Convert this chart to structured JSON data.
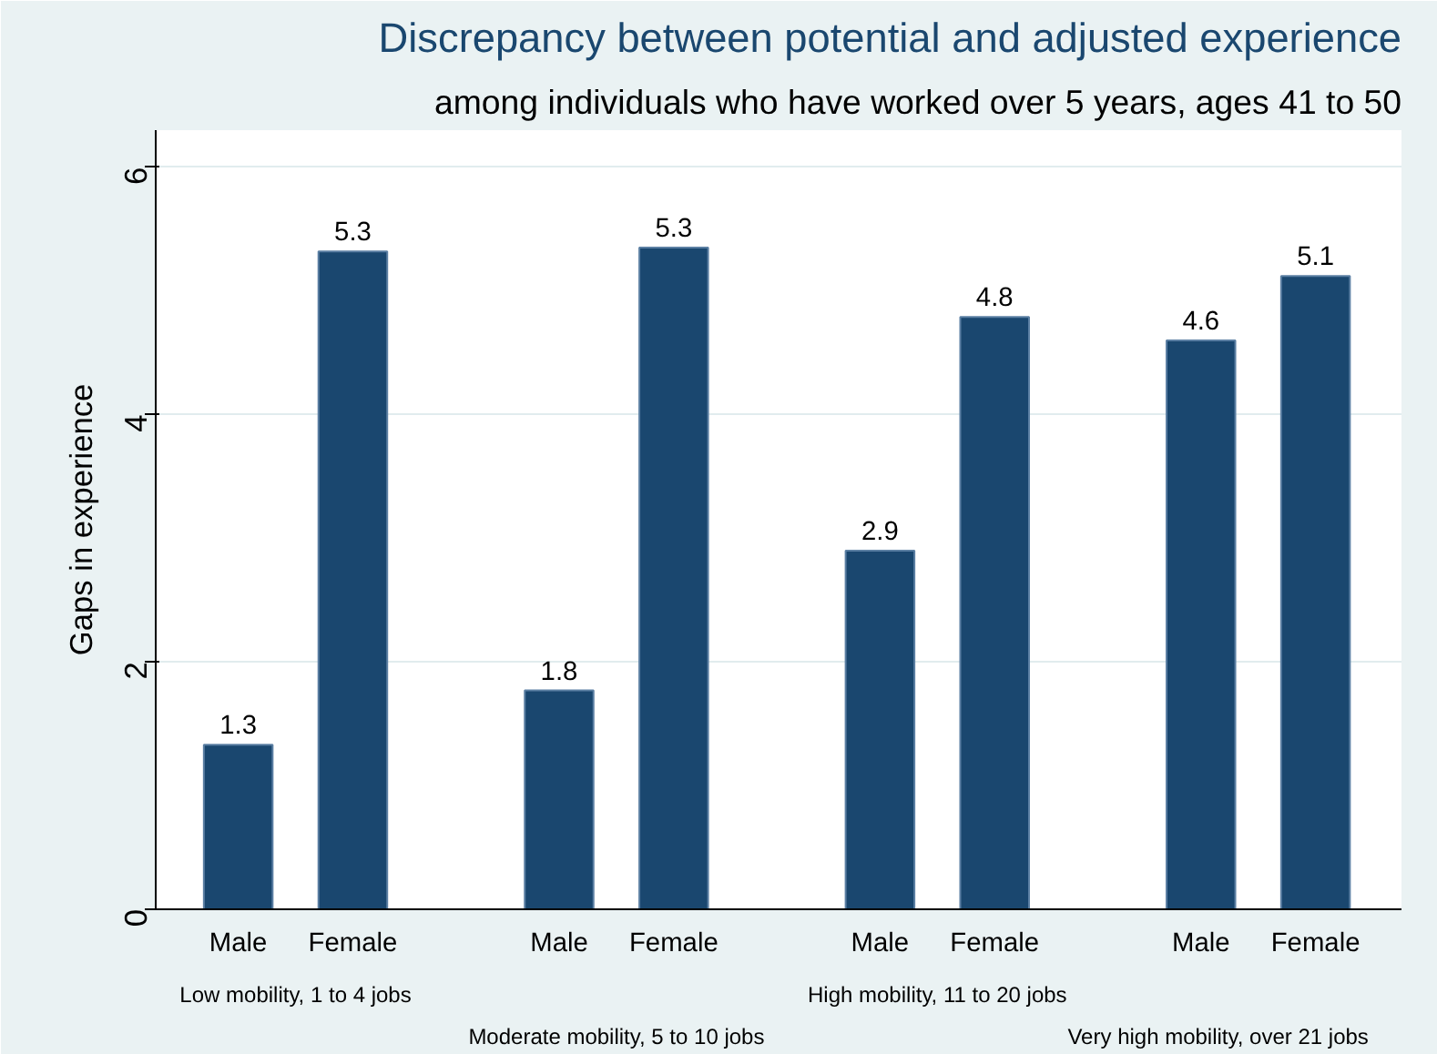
{
  "chart_data": {
    "type": "bar",
    "title": "Discrepancy between potential and adjusted experience",
    "subtitle": "among individuals who have worked over 5 years, ages 41 to 50",
    "ylabel": "Gaps in experience",
    "categories": [
      "Male",
      "Female",
      "Male",
      "Female",
      "Male",
      "Female",
      "Male",
      "Female"
    ],
    "values": [
      1.33,
      5.32,
      1.77,
      5.35,
      2.9,
      4.79,
      4.6,
      5.12
    ],
    "value_labels": [
      "1.3",
      "5.3",
      "1.8",
      "5.3",
      "2.9",
      "4.8",
      "4.6",
      "5.1"
    ],
    "color": "#1a476f",
    "annotations": [
      "Low mobility, 1 to 4 jobs",
      "Moderate mobility, 5 to 10 jobs",
      "High mobility, 11 to 20 jobs",
      "Very high mobility, over 21 jobs"
    ],
    "ylim": [
      0,
      6.3
    ],
    "yticks": [
      0,
      2,
      4,
      6
    ],
    "grid": "y"
  }
}
